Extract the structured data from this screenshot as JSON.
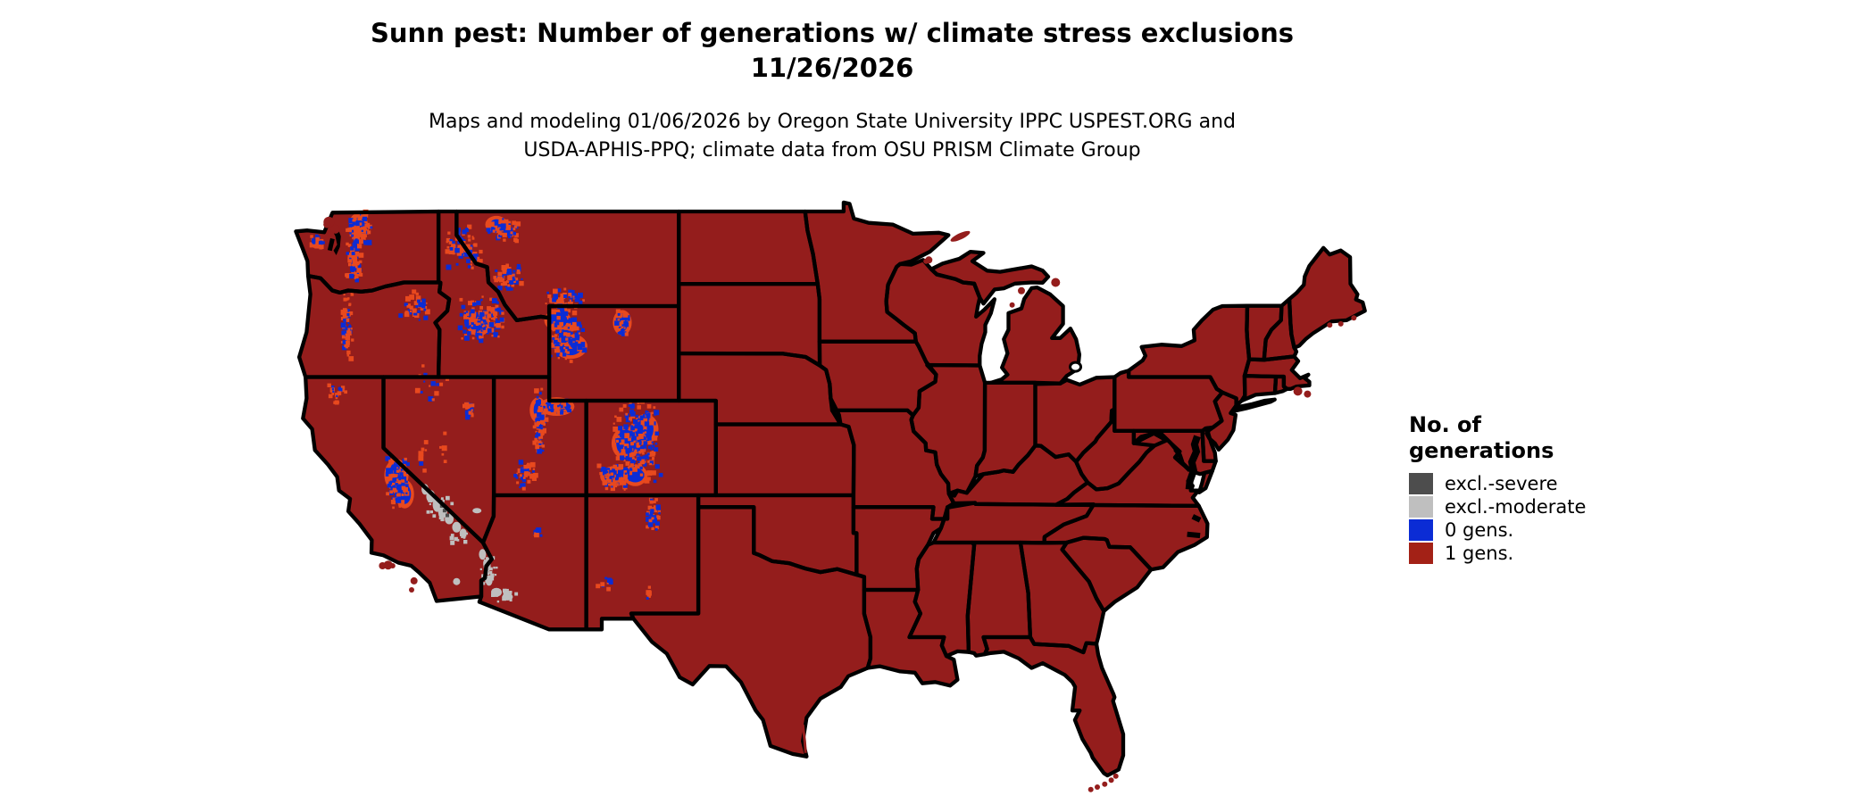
{
  "title": {
    "line1": "Sunn pest: Number of generations w/ climate stress exclusions",
    "line2": "11/26/2026"
  },
  "subtitle": {
    "line1": "Maps and modeling 01/06/2026 by Oregon State University IPPC USPEST.ORG and",
    "line2": "USDA-APHIS-PPQ; climate data from OSU PRISM Climate Group"
  },
  "legend": {
    "title_line1": "No. of",
    "title_line2": "generations",
    "items": [
      {
        "label": "excl.-severe",
        "color": "#4d4d4d"
      },
      {
        "label": "excl.-moderate",
        "color": "#bfbfbf"
      },
      {
        "label": "0 gens.",
        "color": "#0b2cd5"
      },
      {
        "label": "1 gens.",
        "color": "#a32116"
      }
    ]
  },
  "map": {
    "region": "Contiguous United States",
    "background_color": "#ffffff",
    "border_color": "#000000",
    "fill_1_gens": "#941d1c",
    "fill_0_gens": "#0b2cd5",
    "fill_mixed_orange": "#e8491e",
    "fill_excl_moderate": "#bfbfbf",
    "fill_excl_severe": "#4d4d4d"
  }
}
